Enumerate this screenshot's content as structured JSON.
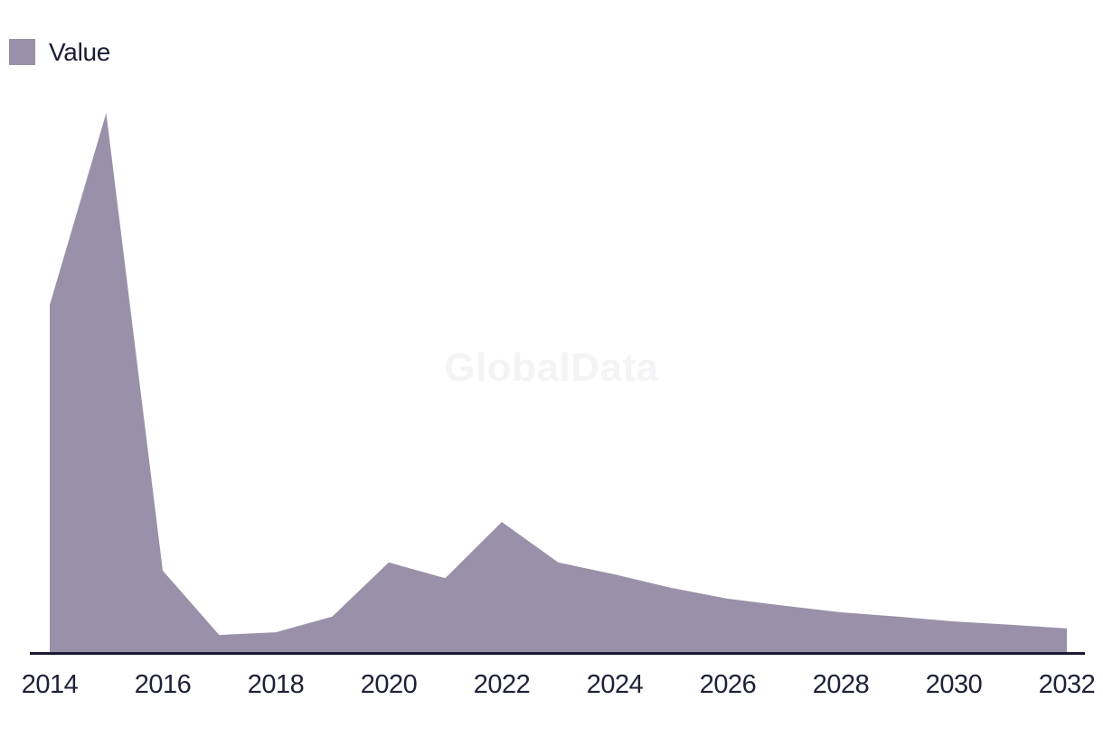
{
  "watermark_text": "GlobalData",
  "legend": {
    "items": [
      {
        "label": "Value",
        "swatch_color": "#9991a9"
      }
    ]
  },
  "colors": {
    "background": "#ffffff",
    "series_fill": "#9991a9",
    "axis_line": "#1b1c32",
    "tick_label": "#1f2138",
    "watermark": "#f4f4f6"
  },
  "chart_data": {
    "type": "area",
    "title": "",
    "xlabel": "",
    "ylabel": "",
    "x": [
      2014,
      2015,
      2016,
      2017,
      2018,
      2019,
      2020,
      2021,
      2022,
      2023,
      2024,
      2025,
      2026,
      2027,
      2028,
      2029,
      2030,
      2031,
      2032
    ],
    "series": [
      {
        "name": "Value",
        "values": [
          64.5,
          100,
          15.4,
          3.5,
          4.0,
          6.9,
          16.9,
          14.0,
          24.4,
          16.9,
          14.7,
          12.2,
          10.2,
          8.9,
          7.7,
          6.9,
          6.0,
          5.4,
          4.7
        ]
      }
    ],
    "x_tick_labels": [
      "2014",
      "2016",
      "2018",
      "2020",
      "2022",
      "2024",
      "2026",
      "2028",
      "2030",
      "2032"
    ],
    "xlim": [
      2014,
      2032
    ],
    "ylim": [
      0,
      100
    ],
    "y_axis_visible": false,
    "grid": false,
    "legend_position": "top-left"
  }
}
